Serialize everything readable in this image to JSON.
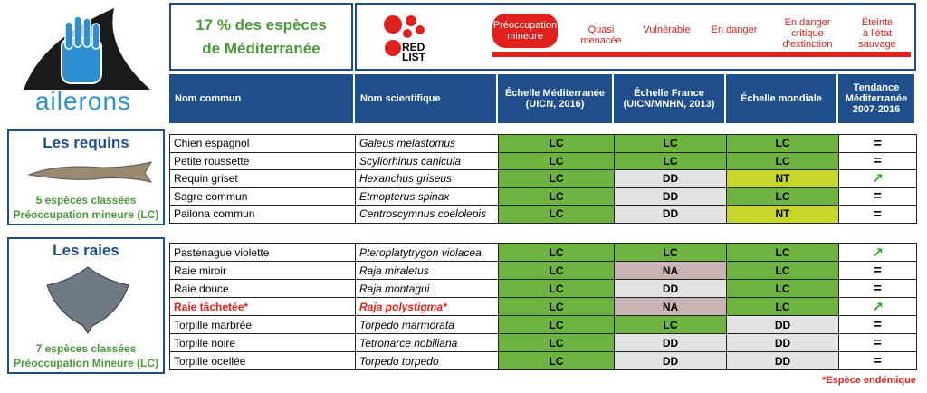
{
  "logo": {
    "text": "ailerons"
  },
  "banner": {
    "line1": "17 % des espèces",
    "line2": "de Méditerranée"
  },
  "redlist": {
    "logo_text": "RED LIST",
    "categories": [
      "Préoccupation\nmineure",
      "Quasi\nmenacée",
      "Vulnérable",
      "En danger",
      "En danger\ncritique\nd'extinction",
      "Éteinte\nà l'état\nsauvage"
    ]
  },
  "columns": [
    "Nom commun",
    "Nom scientifique",
    "Échelle Méditerranée\n(UICN, 2016)",
    "Échelle France\n(UICN/MNHN, 2013)",
    "Échelle mondiale",
    "Tendance\nMéditerranée\n2007-2016"
  ],
  "status_colors": {
    "LC": "#6db33f",
    "DD": "#e3e3e3",
    "NT": "#c8d62b",
    "NA": "#c9b4b4"
  },
  "trend_color": "#2aa82a",
  "groups": [
    {
      "title": "Les requins",
      "count": "5 espèces classées",
      "status": "Préoccupation mineure (LC)",
      "rows": [
        {
          "common": "Chien espagnol",
          "scientific": "Galeus melastomus",
          "mediterranee": "LC",
          "france": "LC",
          "mondiale": "LC",
          "tendance": "="
        },
        {
          "common": "Petite roussette",
          "scientific": "Scyliorhinus canicula",
          "mediterranee": "LC",
          "france": "LC",
          "mondiale": "LC",
          "tendance": "="
        },
        {
          "common": "Requin griset",
          "scientific": "Hexanchus griseus",
          "mediterranee": "LC",
          "france": "DD",
          "mondiale": "NT",
          "tendance": "↗"
        },
        {
          "common": "Sagre commun",
          "scientific": "Etmopterus spinax",
          "mediterranee": "LC",
          "france": "DD",
          "mondiale": "LC",
          "tendance": "="
        },
        {
          "common": "Pailona commun",
          "scientific": "Centroscymnus coelolepis",
          "mediterranee": "LC",
          "france": "DD",
          "mondiale": "NT",
          "tendance": "="
        }
      ]
    },
    {
      "title": "Les raies",
      "count": "7 espèces classées",
      "status": "Préoccupation Mineure (LC)",
      "rows": [
        {
          "common": "Pastenague violette",
          "scientific": "Pteroplatytrygon violacea",
          "mediterranee": "LC",
          "france": "LC",
          "mondiale": "LC",
          "tendance": "↗"
        },
        {
          "common": "Raie miroir",
          "scientific": "Raja miraletus",
          "mediterranee": "LC",
          "france": "NA",
          "mondiale": "LC",
          "tendance": "="
        },
        {
          "common": "Raie douce",
          "scientific": "Raja montagui",
          "mediterranee": "LC",
          "france": "DD",
          "mondiale": "LC",
          "tendance": "="
        },
        {
          "common": "Raie tâchetée*",
          "scientific": "Raja polystigma*",
          "mediterranee": "LC",
          "france": "NA",
          "mondiale": "LC",
          "tendance": "↗",
          "color": "#e8211d"
        },
        {
          "common": "Torpille marbrée",
          "scientific": "Torpedo marmorata",
          "mediterranee": "LC",
          "france": "LC",
          "mondiale": "DD",
          "tendance": "="
        },
        {
          "common": "Torpille noire",
          "scientific": "Tetronarce nobiliana",
          "mediterranee": "LC",
          "france": "DD",
          "mondiale": "DD",
          "tendance": "="
        },
        {
          "common": "Torpille ocellée",
          "scientific": "Torpedo torpedo",
          "mediterranee": "LC",
          "france": "DD",
          "mondiale": "DD",
          "tendance": "="
        }
      ]
    }
  ],
  "footnote": "*Espèce endémique"
}
